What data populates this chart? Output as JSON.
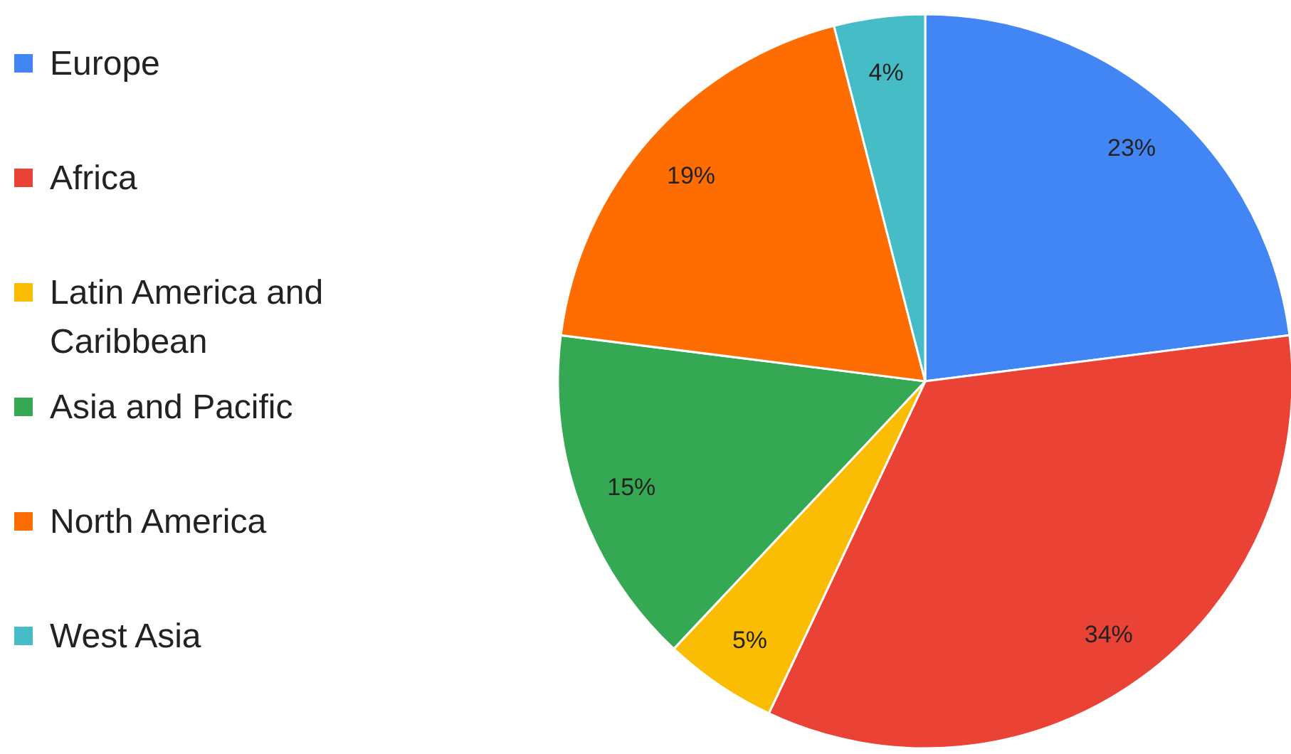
{
  "chart_data": {
    "type": "pie",
    "categories": [
      "Europe",
      "Africa",
      "Latin America and Caribbean",
      "Asia and Pacific",
      "North America",
      "West Asia"
    ],
    "values": [
      23,
      34,
      5,
      15,
      19,
      4
    ],
    "colors": [
      "#4285f4",
      "#ea4335",
      "#fbbc04",
      "#34a853",
      "#ff6d01",
      "#46bdc6"
    ],
    "value_labels": [
      "23%",
      "34%",
      "5%",
      "15%",
      "19%",
      "4%"
    ],
    "legend": "left"
  }
}
